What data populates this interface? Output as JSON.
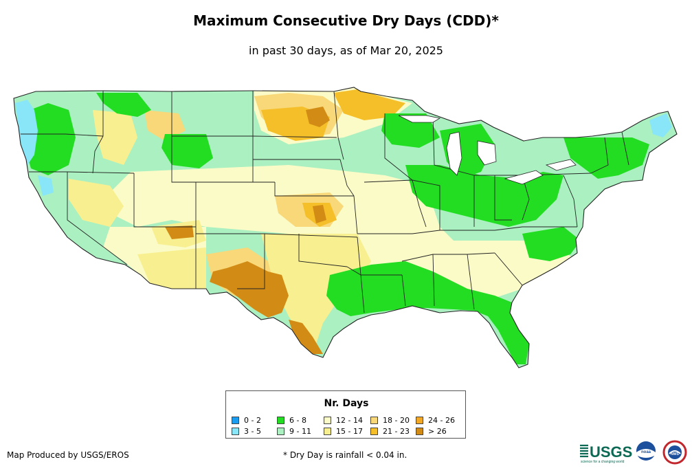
{
  "title": "Maximum Consecutive Dry Days (CDD)*",
  "subtitle": "in past 30 days, as of Mar 20, 2025",
  "legend": {
    "title": "Nr. Days",
    "items": [
      {
        "label": "0 - 2",
        "color": "#1a9cf0"
      },
      {
        "label": "3 - 5",
        "color": "#88e6f8"
      },
      {
        "label": "6 - 8",
        "color": "#22dd22"
      },
      {
        "label": "9 - 11",
        "color": "#aaf0c0"
      },
      {
        "label": "12 - 14",
        "color": "#fbfbc8"
      },
      {
        "label": "15 - 17",
        "color": "#f8f090"
      },
      {
        "label": "18 - 20",
        "color": "#f8d878"
      },
      {
        "label": "21 - 23",
        "color": "#f5bf2a"
      },
      {
        "label": "24 - 26",
        "color": "#f2a825"
      },
      {
        "label": "> 26",
        "color": "#d28c15"
      }
    ]
  },
  "credit": "Map Produced by USGS/EROS",
  "footnote": "* Dry Day is rainfall < 0.04 in.",
  "logos": {
    "usgs": "USGS",
    "usgs_tagline": "science for a changing world",
    "noaa": "noaa",
    "nws": "NWS"
  }
}
